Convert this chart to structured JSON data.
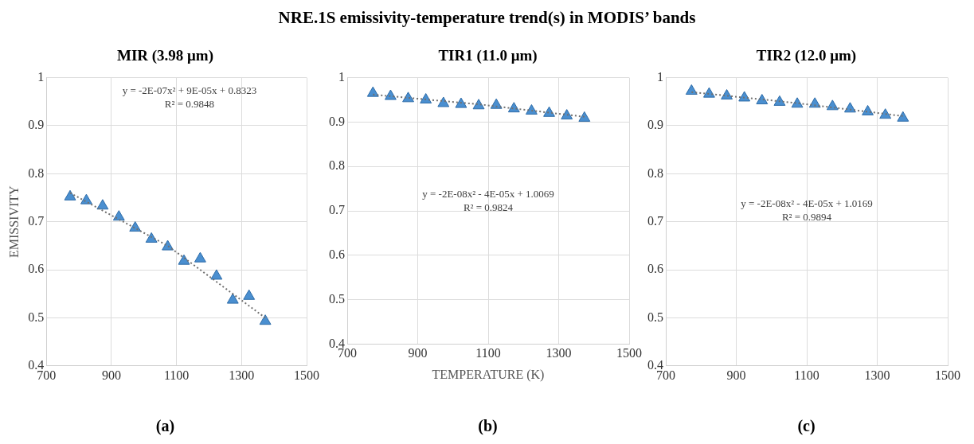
{
  "chart_data": [
    {
      "type": "scatter",
      "title": "MIR (3.98 μm)",
      "ylabel": "EMISSIVITY",
      "annotations": [
        "y = -2E-07x² + 9E-05x + 0.8323",
        "R² = 0.9848",
        "(a)",
        "NRE.1S emissivity-temperature trend(s) in MODIS’ bands"
      ],
      "x": [
        773,
        823,
        873,
        923,
        973,
        1023,
        1073,
        1123,
        1173,
        1223,
        1273,
        1323,
        1373
      ],
      "series": [
        {
          "color": "#4a8fd0",
          "values": [
            0.752,
            0.744,
            0.733,
            0.71,
            0.687,
            0.664,
            0.648,
            0.618,
            0.623,
            0.587,
            0.537,
            0.545,
            0.493
          ]
        },
        {
          "type": "line",
          "line_style": "dotted",
          "marker": "none",
          "color": "#707070",
          "x": [
            773,
            1073,
            1373
          ],
          "values": [
            0.76,
            0.65,
            0.5
          ]
        }
      ],
      "xlim": [
        700,
        1500
      ],
      "xticks": [
        700,
        900,
        1100,
        1300,
        1500
      ],
      "ylim": [
        0.4,
        1
      ],
      "yticks": [
        0.4,
        0.5,
        0.6,
        0.7,
        0.8,
        0.9,
        1
      ],
      "grid": true,
      "legend": false,
      "marker": "triangle"
    },
    {
      "type": "scatter",
      "title": "TIR1 (11.0 μm)",
      "xlabel": "TEMPERATURE (K)",
      "annotations": [
        "y = -2E-08x² - 4E-05x + 1.0069",
        "R² = 0.9824",
        "(b)"
      ],
      "x": [
        773,
        823,
        873,
        923,
        973,
        1023,
        1073,
        1123,
        1173,
        1223,
        1273,
        1323,
        1373
      ],
      "series": [
        {
          "color": "#4a8fd0",
          "values": [
            0.965,
            0.958,
            0.953,
            0.95,
            0.942,
            0.94,
            0.937,
            0.938,
            0.93,
            0.925,
            0.92,
            0.914,
            0.909
          ]
        },
        {
          "type": "line",
          "line_style": "dotted",
          "marker": "none",
          "color": "#707070",
          "x": [
            773,
            1073,
            1373
          ],
          "values": [
            0.962,
            0.94,
            0.912
          ]
        }
      ],
      "xlim": [
        700,
        1500
      ],
      "xticks": [
        700,
        900,
        1100,
        1300,
        1500
      ],
      "ylim": [
        0.4,
        1
      ],
      "yticks": [
        0.4,
        0.5,
        0.6,
        0.7,
        0.8,
        0.9,
        1
      ],
      "grid": true,
      "legend": false,
      "marker": "triangle"
    },
    {
      "type": "scatter",
      "title": "TIR2 (12.0 μm)",
      "annotations": [
        "y = -2E-08x² - 4E-05x + 1.0169",
        "R² = 0.9894",
        "(c)"
      ],
      "x": [
        773,
        823,
        873,
        923,
        973,
        1023,
        1073,
        1123,
        1173,
        1223,
        1273,
        1323,
        1373
      ],
      "series": [
        {
          "color": "#4a8fd0",
          "values": [
            0.972,
            0.966,
            0.962,
            0.958,
            0.952,
            0.949,
            0.945,
            0.945,
            0.94,
            0.935,
            0.929,
            0.922,
            0.916
          ]
        },
        {
          "type": "line",
          "line_style": "dotted",
          "marker": "none",
          "color": "#707070",
          "x": [
            773,
            1073,
            1373
          ],
          "values": [
            0.97,
            0.947,
            0.92
          ]
        }
      ],
      "xlim": [
        700,
        1500
      ],
      "xticks": [
        700,
        900,
        1100,
        1300,
        1500
      ],
      "ylim": [
        0.4,
        1
      ],
      "yticks": [
        0.4,
        0.5,
        0.6,
        0.7,
        0.8,
        0.9,
        1
      ],
      "grid": true,
      "legend": false,
      "marker": "triangle"
    }
  ]
}
